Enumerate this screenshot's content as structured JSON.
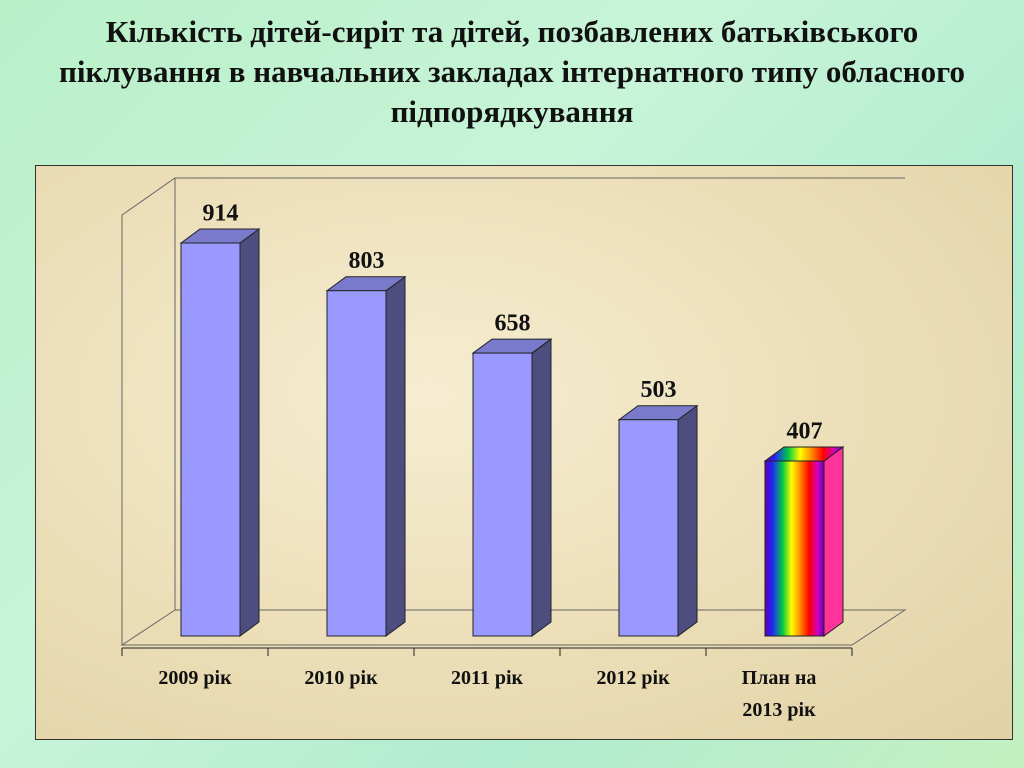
{
  "chart_data": {
    "type": "bar3d",
    "title": "Кількість дітей-сиріт та дітей, позбавлених батьківського піклування в навчальних закладах інтернатного типу обласного підпорядкування",
    "categories": [
      "2009 рік",
      "2010 рік",
      "2011 рік",
      "2012 рік",
      "План на 2013 рік"
    ],
    "values": [
      914,
      803,
      658,
      503,
      407
    ],
    "colors": [
      "#9999ff",
      "#9999ff",
      "#9999ff",
      "#9999ff",
      "rainbow"
    ]
  }
}
